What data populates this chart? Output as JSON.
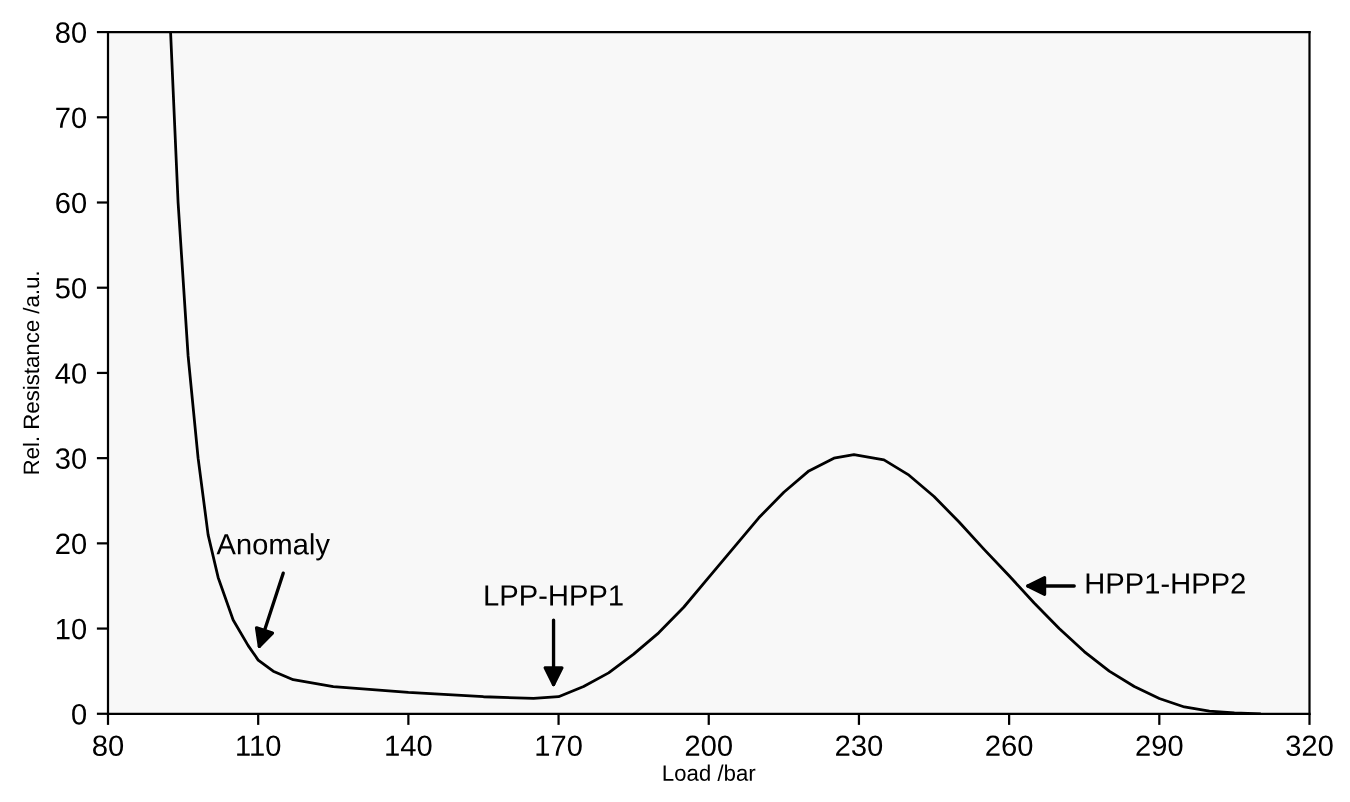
{
  "chart_data": {
    "type": "line",
    "xlabel": "Load /bar",
    "ylabel": "Rel. Resistance /a.u.",
    "series": [
      {
        "color": "#000000",
        "x": [
          92.5,
          94,
          96,
          98,
          100,
          102,
          105,
          108,
          110,
          113,
          117,
          125,
          140,
          155,
          165,
          170,
          175,
          180,
          185,
          190,
          195,
          200,
          205,
          210,
          215,
          220,
          225,
          229,
          235,
          240,
          245,
          250,
          255,
          260,
          265,
          270,
          275,
          280,
          285,
          290,
          295,
          300,
          305,
          310
        ],
        "values": [
          80,
          60,
          42,
          30,
          21,
          16,
          11,
          8,
          6.3,
          5,
          4,
          3.2,
          2.5,
          2,
          1.8,
          2,
          3.2,
          4.8,
          7,
          9.5,
          12.5,
          16,
          19.5,
          23,
          26,
          28.5,
          30,
          30.4,
          29.8,
          28,
          25.5,
          22.5,
          19.3,
          16.2,
          13,
          10,
          7.3,
          5,
          3.2,
          1.8,
          0.8,
          0.3,
          0.1,
          0
        ]
      }
    ],
    "xlim": [
      80,
      320
    ],
    "xticks": [
      80,
      110,
      140,
      170,
      200,
      230,
      260,
      290,
      320
    ],
    "ylim": [
      0,
      80
    ],
    "yticks": [
      0,
      10,
      20,
      30,
      40,
      50,
      60,
      70,
      80
    ],
    "grid": false,
    "legend": false,
    "marker": "none",
    "line_style": "solid",
    "annotations": [
      {
        "text": "Anomaly",
        "x": 110,
        "y": 7.5
      },
      {
        "text": "LPP-HPP1",
        "x": 169,
        "y": 3
      },
      {
        "text": "HPP1-HPP2",
        "x": 262,
        "y": 15
      }
    ]
  }
}
